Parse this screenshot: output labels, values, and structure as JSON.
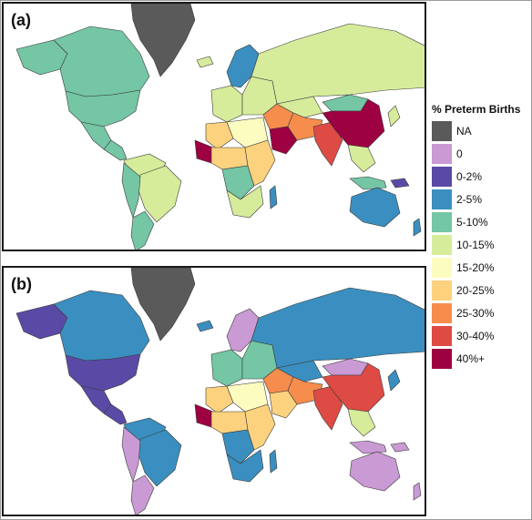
{
  "panels": [
    {
      "label": "(a)",
      "regions": {
        "greenland": "na",
        "canada": "c5_10",
        "alaska": "c5_10",
        "usa": "c5_10",
        "mexico": "c5_10",
        "central_america": "c5_10",
        "south_america_north": "c10_15",
        "brazil": "c10_15",
        "south_america_west": "c5_10",
        "south_america_south": "c5_10",
        "iceland": "c10_15",
        "scandinavia": "c2_5",
        "europe_west": "c10_15",
        "europe_east": "c10_15",
        "russia": "c10_15",
        "north_africa_west": "c20_25",
        "north_africa_mid": "c15_20",
        "sahel_west": "c40p",
        "west_africa": "c20_25",
        "central_africa": "c5_10",
        "east_africa": "c20_25",
        "southern_africa": "c10_15",
        "madagascar": "c2_5",
        "middle_east": "c25_30",
        "arabia": "c40p",
        "central_asia": "c10_15",
        "iran_pak": "c25_30",
        "india": "c30_40",
        "mongolia": "c5_10",
        "china": "c40p",
        "se_asia": "c10_15",
        "indonesia": "c5_10",
        "papua": "c0_2",
        "japan": "c10_15",
        "australia": "c2_5",
        "new_zealand": "c2_5"
      }
    },
    {
      "label": "(b)",
      "regions": {
        "greenland": "na",
        "canada": "c2_5",
        "alaska": "c0_2",
        "usa": "c0_2",
        "mexico": "c0_2",
        "central_america": "c0_2",
        "south_america_north": "c2_5",
        "brazil": "c2_5",
        "south_america_west": "zero",
        "south_america_south": "zero",
        "iceland": "c2_5",
        "scandinavia": "zero",
        "europe_west": "c5_10",
        "europe_east": "c5_10",
        "russia": "c2_5",
        "north_africa_west": "c20_25",
        "north_africa_mid": "c15_20",
        "sahel_west": "c40p",
        "west_africa": "c20_25",
        "central_africa": "c2_5",
        "east_africa": "c20_25",
        "southern_africa": "c2_5",
        "madagascar": "c2_5",
        "middle_east": "c25_30",
        "arabia": "c20_25",
        "central_asia": "c2_5",
        "iran_pak": "c25_30",
        "india": "c30_40",
        "mongolia": "zero",
        "china": "c30_40",
        "se_asia": "c10_15",
        "indonesia": "zero",
        "papua": "zero",
        "japan": "c2_5",
        "australia": "zero",
        "new_zealand": "zero"
      }
    }
  ],
  "legend": {
    "title": "% Preterm Births",
    "items": [
      {
        "key": "na",
        "label": "NA",
        "color": "#5a5a5a"
      },
      {
        "key": "zero",
        "label": "0",
        "color": "#c99ad4"
      },
      {
        "key": "c0_2",
        "label": "0-2%",
        "color": "#5a4aa6"
      },
      {
        "key": "c2_5",
        "label": "2-5%",
        "color": "#3a8fc0"
      },
      {
        "key": "c5_10",
        "label": "5-10%",
        "color": "#74c6a4"
      },
      {
        "key": "c10_15",
        "label": "10-15%",
        "color": "#d6ec9b"
      },
      {
        "key": "c15_20",
        "label": "15-20%",
        "color": "#fcfbc0"
      },
      {
        "key": "c20_25",
        "label": "20-25%",
        "color": "#fcd27e"
      },
      {
        "key": "c25_30",
        "label": "25-30%",
        "color": "#f68d4d"
      },
      {
        "key": "c30_40",
        "label": "30-40%",
        "color": "#de4a44"
      },
      {
        "key": "c40p",
        "label": "40%+",
        "color": "#9e0142"
      }
    ]
  }
}
